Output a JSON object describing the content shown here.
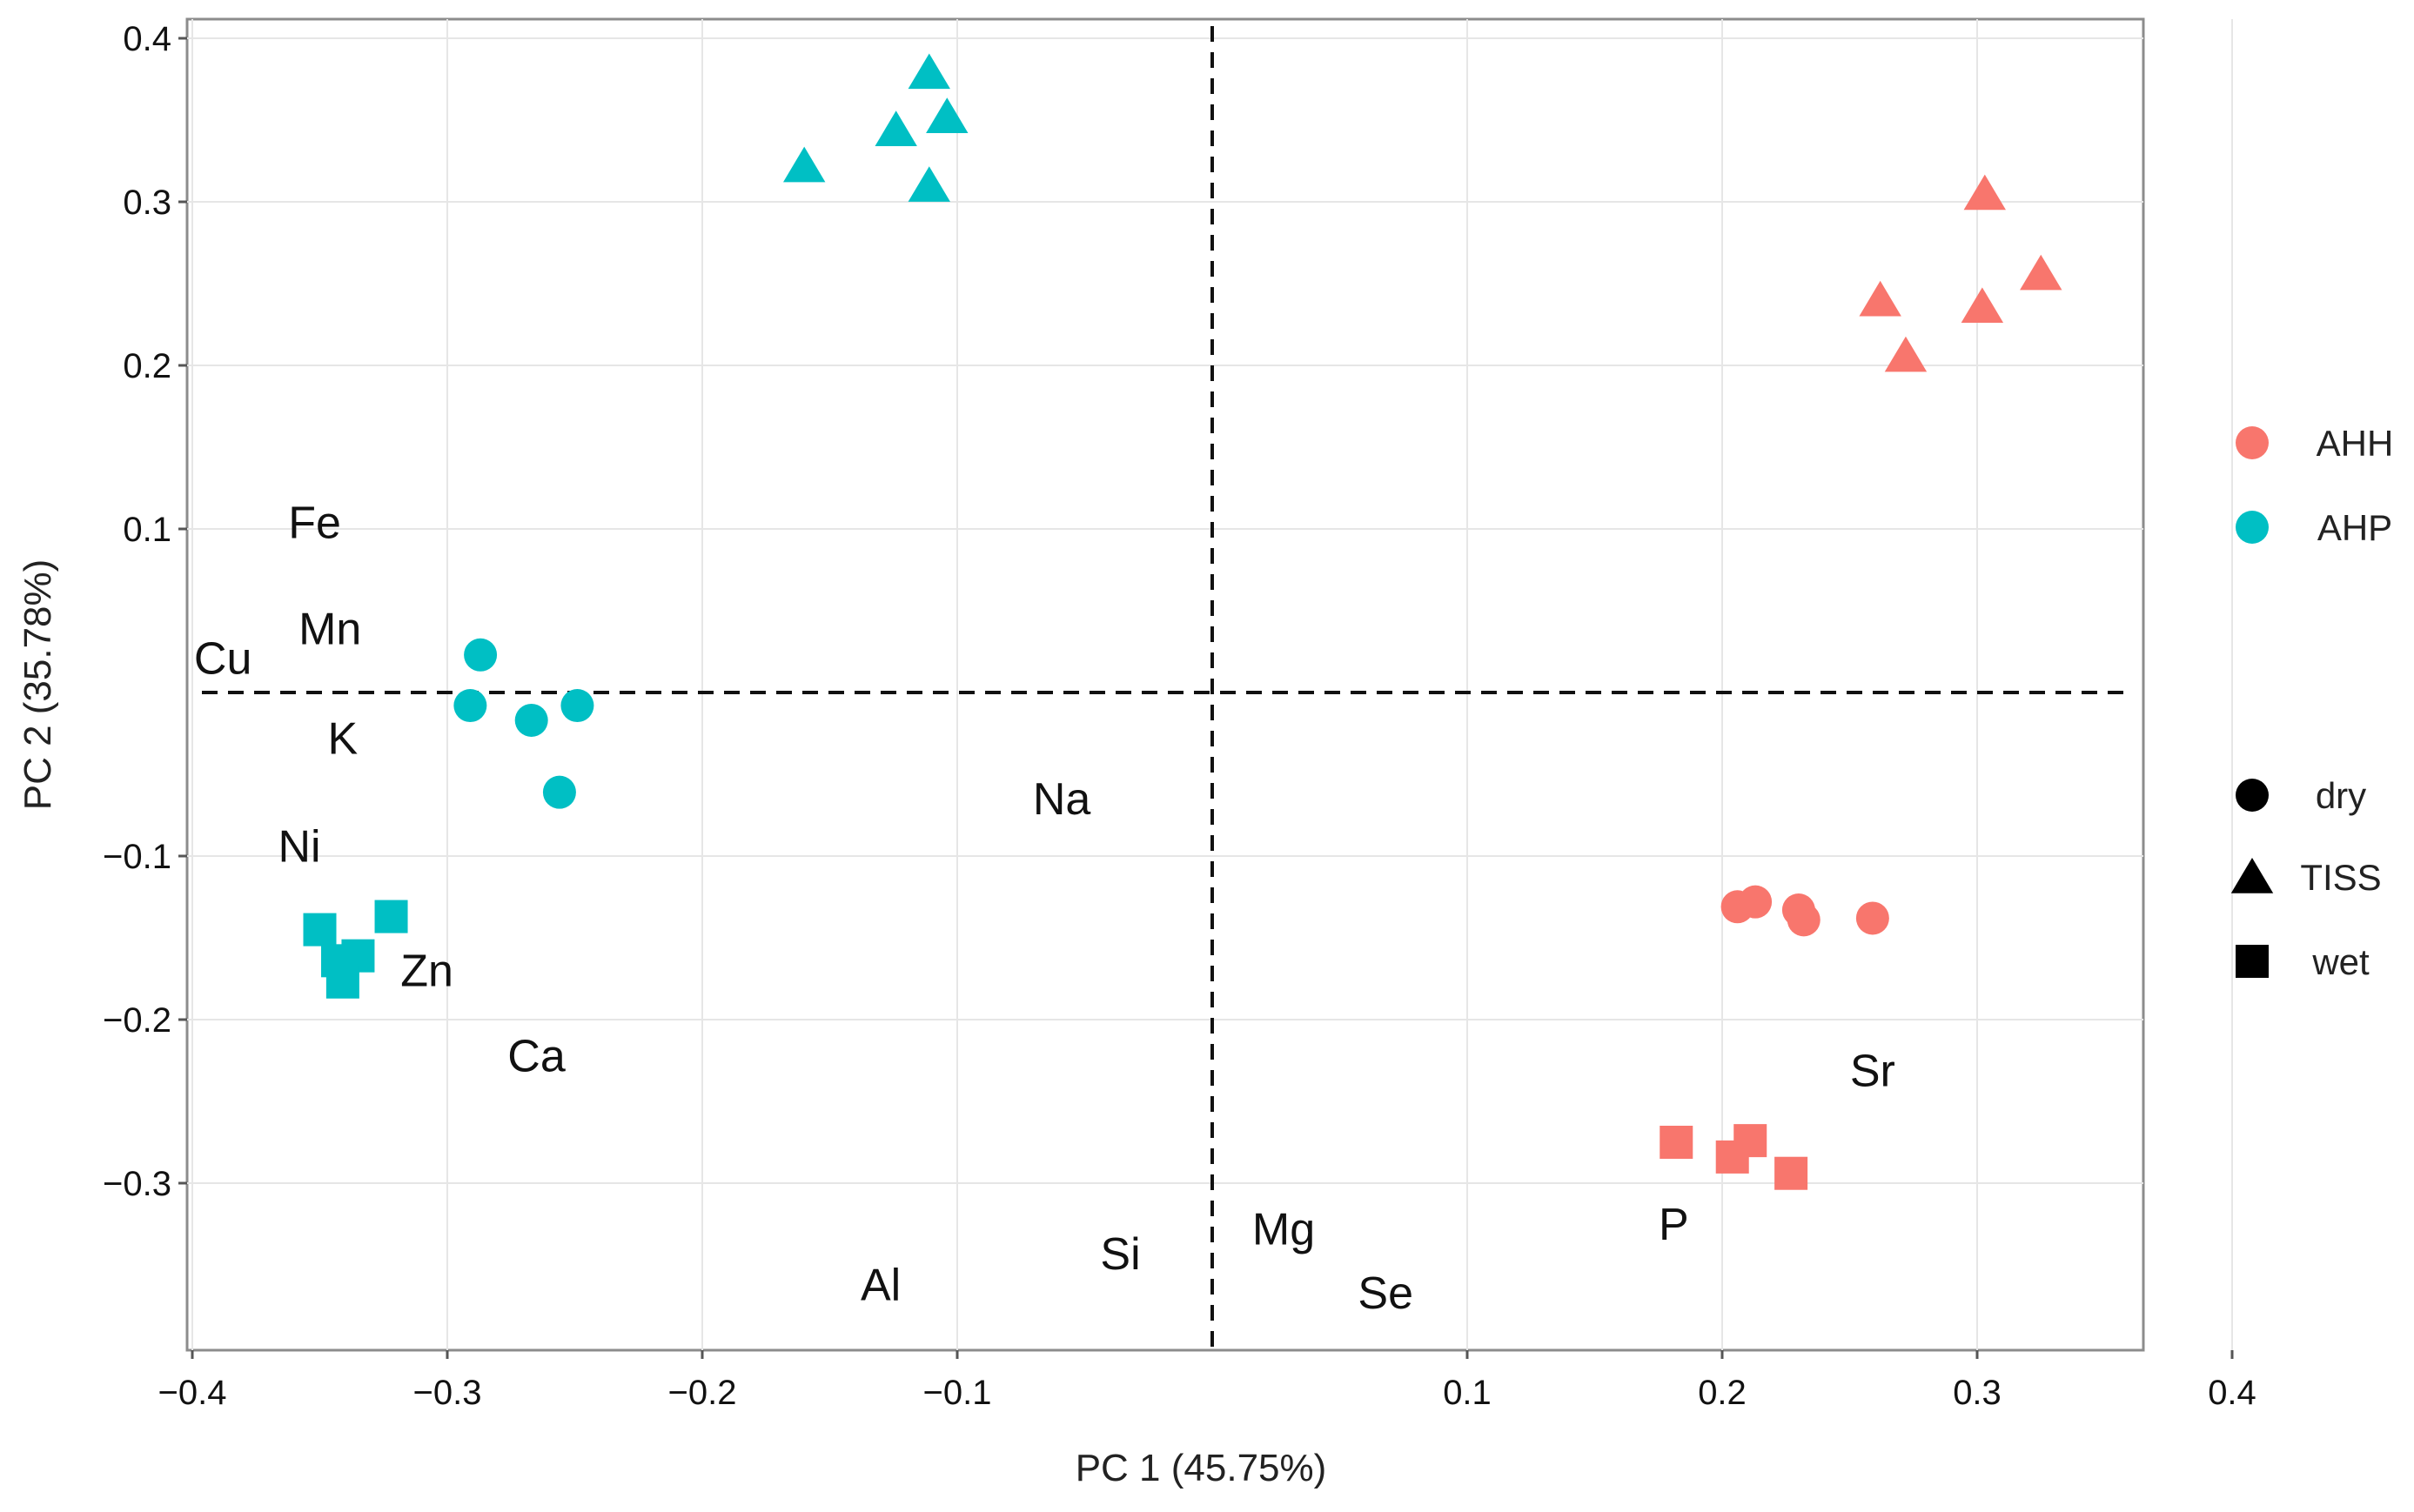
{
  "chart_data": {
    "type": "scatter",
    "xlabel": "PC 1 (45.75%)",
    "ylabel": "PC 2 (35.78%)",
    "xlim": [
      -0.4,
      0.4
    ],
    "ylim": [
      -0.4,
      0.4
    ],
    "x_ticks": [
      {
        "value": -0.4,
        "label": "−0.4"
      },
      {
        "value": -0.3,
        "label": "−0.3"
      },
      {
        "value": -0.2,
        "label": "−0.2"
      },
      {
        "value": -0.1,
        "label": "−0.1"
      },
      {
        "value": 0.1,
        "label": "0.1"
      },
      {
        "value": 0.2,
        "label": "0.2"
      },
      {
        "value": 0.3,
        "label": "0.3"
      },
      {
        "value": 0.4,
        "label": "0.4"
      }
    ],
    "y_ticks": [
      {
        "value": 0.4,
        "label": "0.4"
      },
      {
        "value": 0.3,
        "label": "0.3"
      },
      {
        "value": 0.2,
        "label": "0.2"
      },
      {
        "value": 0.1,
        "label": "0.1"
      },
      {
        "value": -0.1,
        "label": "−0.1"
      },
      {
        "value": -0.2,
        "label": "−0.2"
      },
      {
        "value": -0.3,
        "label": "−0.3"
      }
    ],
    "grid": true,
    "reference_lines": {
      "x": 0,
      "y": 0,
      "style": "dashed"
    },
    "colors": {
      "AHH": "#f8766d",
      "AHP": "#00bfc4"
    },
    "legend_color": {
      "position": "right",
      "entries": [
        {
          "label": "AHH",
          "color": "#f8766d"
        },
        {
          "label": "AHP",
          "color": "#00bfc4"
        }
      ]
    },
    "legend_shape": {
      "position": "right",
      "entries": [
        {
          "label": "dry",
          "shape": "circle"
        },
        {
          "label": "TISS",
          "shape": "triangle"
        },
        {
          "label": "wet",
          "shape": "square"
        }
      ]
    },
    "points": [
      {
        "group": "AHP",
        "type": "TISS",
        "x": -0.16,
        "y": 0.322
      },
      {
        "group": "AHP",
        "type": "TISS",
        "x": -0.124,
        "y": 0.344
      },
      {
        "group": "AHP",
        "type": "TISS",
        "x": -0.111,
        "y": 0.379
      },
      {
        "group": "AHP",
        "type": "TISS",
        "x": -0.104,
        "y": 0.352
      },
      {
        "group": "AHP",
        "type": "TISS",
        "x": -0.111,
        "y": 0.31
      },
      {
        "group": "AHH",
        "type": "TISS",
        "x": 0.303,
        "y": 0.305
      },
      {
        "group": "AHH",
        "type": "TISS",
        "x": 0.325,
        "y": 0.256
      },
      {
        "group": "AHH",
        "type": "TISS",
        "x": 0.262,
        "y": 0.24
      },
      {
        "group": "AHH",
        "type": "TISS",
        "x": 0.302,
        "y": 0.236
      },
      {
        "group": "AHH",
        "type": "TISS",
        "x": 0.272,
        "y": 0.206
      },
      {
        "group": "AHP",
        "type": "dry",
        "x": -0.287,
        "y": 0.023
      },
      {
        "group": "AHP",
        "type": "dry",
        "x": -0.291,
        "y": -0.008
      },
      {
        "group": "AHP",
        "type": "dry",
        "x": -0.267,
        "y": -0.017
      },
      {
        "group": "AHP",
        "type": "dry",
        "x": -0.249,
        "y": -0.008
      },
      {
        "group": "AHP",
        "type": "dry",
        "x": -0.256,
        "y": -0.061
      },
      {
        "group": "AHH",
        "type": "dry",
        "x": 0.206,
        "y": -0.131
      },
      {
        "group": "AHH",
        "type": "dry",
        "x": 0.213,
        "y": -0.128
      },
      {
        "group": "AHH",
        "type": "dry",
        "x": 0.23,
        "y": -0.133
      },
      {
        "group": "AHH",
        "type": "dry",
        "x": 0.232,
        "y": -0.139
      },
      {
        "group": "AHH",
        "type": "dry",
        "x": 0.259,
        "y": -0.138
      },
      {
        "group": "AHP",
        "type": "wet",
        "x": -0.35,
        "y": -0.145
      },
      {
        "group": "AHP",
        "type": "wet",
        "x": -0.322,
        "y": -0.137
      },
      {
        "group": "AHP",
        "type": "wet",
        "x": -0.343,
        "y": -0.164
      },
      {
        "group": "AHP",
        "type": "wet",
        "x": -0.335,
        "y": -0.161
      },
      {
        "group": "AHP",
        "type": "wet",
        "x": -0.341,
        "y": -0.177
      },
      {
        "group": "AHH",
        "type": "wet",
        "x": 0.182,
        "y": -0.275
      },
      {
        "group": "AHH",
        "type": "wet",
        "x": 0.204,
        "y": -0.284
      },
      {
        "group": "AHH",
        "type": "wet",
        "x": 0.211,
        "y": -0.274
      },
      {
        "group": "AHH",
        "type": "wet",
        "x": 0.227,
        "y": -0.294
      }
    ],
    "variable_labels": [
      {
        "label": "Fe",
        "x": -0.352,
        "y": 0.104
      },
      {
        "label": "Mn",
        "x": -0.346,
        "y": 0.039
      },
      {
        "label": "Cu",
        "x": -0.388,
        "y": 0.021
      },
      {
        "label": "K",
        "x": -0.341,
        "y": -0.028
      },
      {
        "label": "Ni",
        "x": -0.358,
        "y": -0.094
      },
      {
        "label": "Zn",
        "x": -0.308,
        "y": -0.17
      },
      {
        "label": "Ca",
        "x": -0.265,
        "y": -0.222
      },
      {
        "label": "Na",
        "x": -0.059,
        "y": -0.065
      },
      {
        "label": "Al",
        "x": -0.13,
        "y": -0.362
      },
      {
        "label": "Si",
        "x": -0.036,
        "y": -0.343
      },
      {
        "label": "Mg",
        "x": 0.028,
        "y": -0.328
      },
      {
        "label": "Se",
        "x": 0.068,
        "y": -0.367
      },
      {
        "label": "Sr",
        "x": 0.259,
        "y": -0.231
      },
      {
        "label": "P",
        "x": 0.181,
        "y": -0.325
      }
    ]
  }
}
